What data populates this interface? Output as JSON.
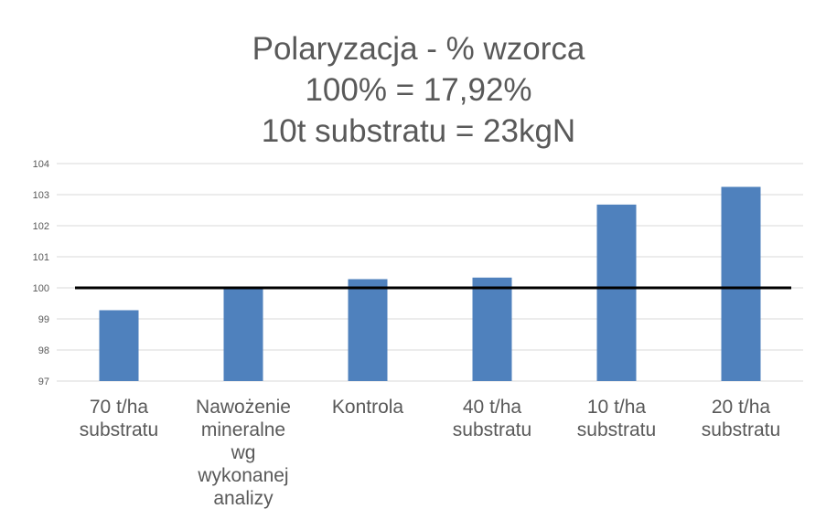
{
  "chart_data": {
    "type": "bar",
    "title_lines": [
      "Polaryzacja - % wzorca",
      "100% = 17,92%",
      "10t substratu = 23kgN"
    ],
    "categories": [
      [
        "70 t/ha",
        "substratu"
      ],
      [
        "Nawożenie",
        "mineralne",
        "wg",
        "wykonanej",
        "analizy"
      ],
      [
        "Kontrola"
      ],
      [
        "40 t/ha",
        "substratu"
      ],
      [
        "10 t/ha",
        "substratu"
      ],
      [
        "20 t/ha",
        "substratu"
      ]
    ],
    "values": [
      99.28,
      100.0,
      100.28,
      100.33,
      102.68,
      103.25
    ],
    "ylim": [
      97,
      104
    ],
    "yticks": [
      "97",
      "98",
      "99",
      "100",
      "101",
      "102",
      "103",
      "104"
    ],
    "reference_line": 100,
    "grid": true,
    "colors": {
      "bar": "#4f81bd",
      "reference": "#000000",
      "grid": "#d9d9d9",
      "text": "#595959"
    }
  }
}
